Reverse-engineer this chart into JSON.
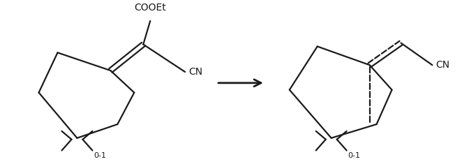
{
  "background_color": "#ffffff",
  "line_color": "#1a1a1a",
  "line_width": 1.6,
  "figsize": [
    6.62,
    2.35
  ],
  "dpi": 100,
  "cooet_label": "COOEt",
  "cn_label": "CN",
  "subscript_label": "0-1"
}
